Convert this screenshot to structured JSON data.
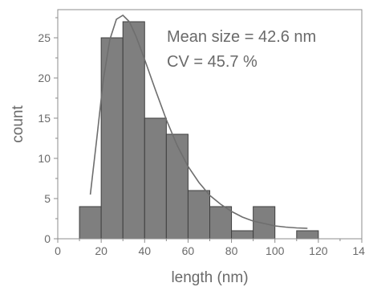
{
  "chart_data": {
    "type": "bar",
    "xlabel": "length (nm)",
    "ylabel": "count",
    "xlim": [
      0,
      140
    ],
    "ylim": [
      0,
      28.5
    ],
    "x_ticks": [
      0,
      20,
      40,
      60,
      80,
      100,
      120,
      140
    ],
    "y_ticks": [
      0,
      5,
      10,
      15,
      20,
      25
    ],
    "bin_width": 10,
    "bins": [
      {
        "start": 10,
        "end": 20,
        "count": 4
      },
      {
        "start": 20,
        "end": 30,
        "count": 25
      },
      {
        "start": 30,
        "end": 40,
        "count": 27
      },
      {
        "start": 40,
        "end": 50,
        "count": 15
      },
      {
        "start": 50,
        "end": 60,
        "count": 13
      },
      {
        "start": 60,
        "end": 70,
        "count": 6
      },
      {
        "start": 70,
        "end": 80,
        "count": 4
      },
      {
        "start": 80,
        "end": 90,
        "count": 1
      },
      {
        "start": 90,
        "end": 100,
        "count": 4
      },
      {
        "start": 100,
        "end": 110,
        "count": 0
      },
      {
        "start": 110,
        "end": 120,
        "count": 1
      }
    ],
    "fit_curve": {
      "type": "log-normal fit",
      "points": [
        [
          15,
          5.5
        ],
        [
          18,
          12.5
        ],
        [
          21,
          19.8
        ],
        [
          24,
          24.8
        ],
        [
          27,
          27.3
        ],
        [
          30,
          27.8
        ],
        [
          33,
          27.0
        ],
        [
          36,
          25.2
        ],
        [
          40,
          22.3
        ],
        [
          45,
          18.5
        ],
        [
          50,
          14.8
        ],
        [
          55,
          11.6
        ],
        [
          60,
          9.0
        ],
        [
          65,
          7.0
        ],
        [
          70,
          5.4
        ],
        [
          75,
          4.3
        ],
        [
          80,
          3.4
        ],
        [
          85,
          2.7
        ],
        [
          90,
          2.2
        ],
        [
          95,
          1.9
        ],
        [
          100,
          1.6
        ],
        [
          105,
          1.45
        ],
        [
          110,
          1.35
        ],
        [
          115,
          1.3
        ]
      ]
    },
    "annotations": [
      "Mean size = 42.6 nm",
      "CV = 45.7 %"
    ],
    "colors": {
      "bar_fill": "#7f7f7f",
      "bar_stroke": "#3f3f3f",
      "curve": "#6e6e6e",
      "axis": "#8c8c8c",
      "text": "#6a6a6a"
    }
  }
}
